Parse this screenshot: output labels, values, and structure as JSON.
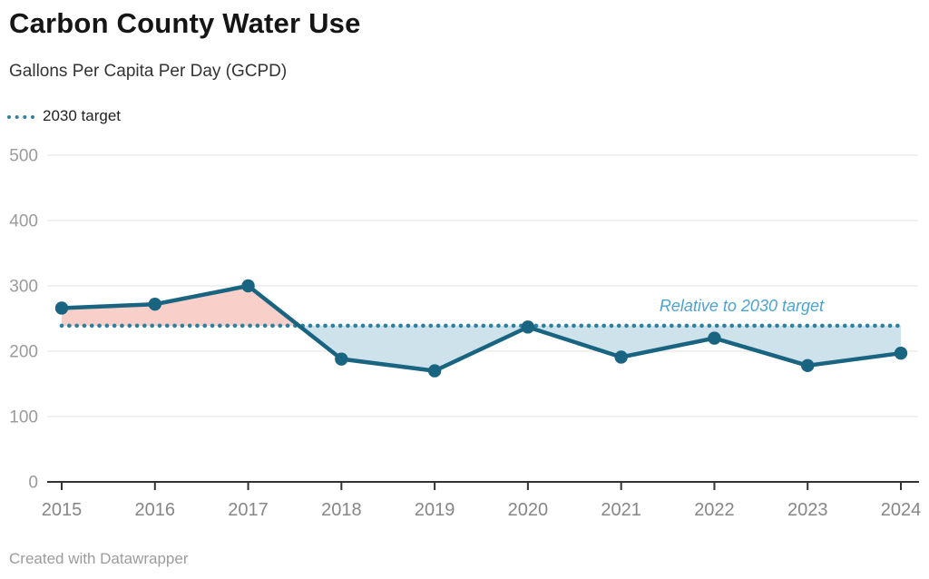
{
  "header": {
    "title": "Carbon County Water Use",
    "subtitle": "Gallons Per Capita Per Day (GCPD)"
  },
  "legend": {
    "target_label": "2030 target"
  },
  "footer": {
    "credit": "Created with Datawrapper"
  },
  "chart_data": {
    "type": "line",
    "title": "Carbon County Water Use",
    "subtitle": "Gallons Per Capita Per Day (GCPD)",
    "x": [
      2015,
      2016,
      2017,
      2018,
      2019,
      2020,
      2021,
      2022,
      2023,
      2024
    ],
    "series": [
      {
        "name": "GCPD",
        "values": [
          266,
          272,
          300,
          188,
          170,
          237,
          191,
          220,
          178,
          197
        ]
      }
    ],
    "target": {
      "label": "2030 target",
      "value": 239
    },
    "annotation": {
      "text": "Relative to 2030 target"
    },
    "ylim": [
      0,
      500
    ],
    "yticks": [
      0,
      100,
      200,
      300,
      400,
      500
    ],
    "grid": true,
    "legend_position": "top-left",
    "colors": {
      "line": "#196480",
      "target": "#2e80a0",
      "fill_above_target": "#f8cfc9",
      "fill_below_target": "#cee2ec",
      "annotation": "#4ba3d0",
      "y_label": "#9b9b9b",
      "x_label": "#868686",
      "axis": "#333333",
      "grid": "#e7e7e7"
    }
  }
}
